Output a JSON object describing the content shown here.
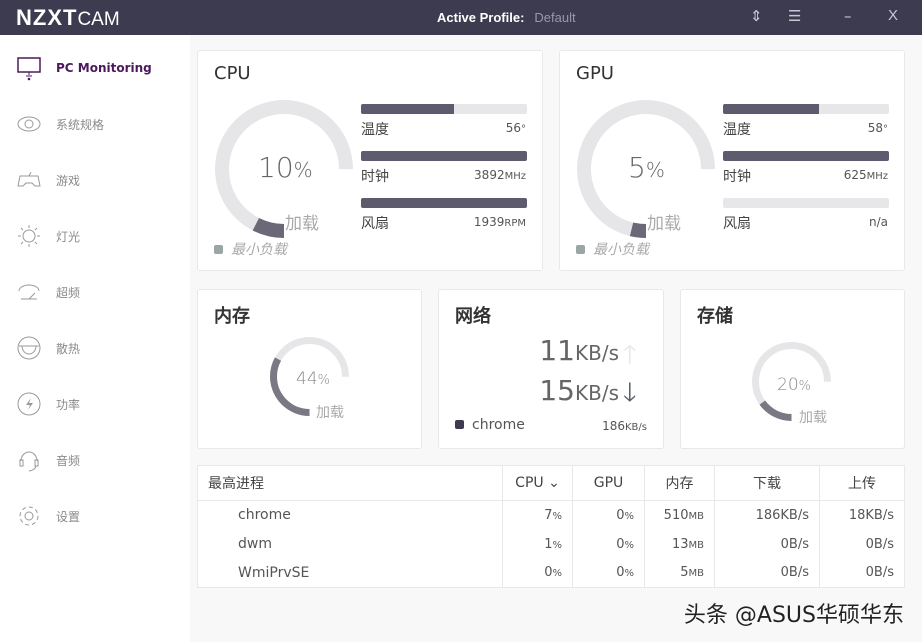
{
  "titlebar": {
    "brand": "NZXT",
    "product": "CAM",
    "profile_label": "Active Profile:",
    "profile_value": "Default",
    "icons": [
      "sort-arrows-icon",
      "menu-icon",
      "minimize-icon",
      "close-icon"
    ],
    "minimize": "–",
    "close": "X"
  },
  "sidebar": {
    "items": [
      {
        "label": "PC Monitoring",
        "icon": "monitor-icon",
        "active": true
      },
      {
        "label": "系统规格",
        "icon": "eye-icon"
      },
      {
        "label": "游戏",
        "icon": "gamepad-icon"
      },
      {
        "label": "灯光",
        "icon": "sun-icon"
      },
      {
        "label": "超频",
        "icon": "speedometer-icon"
      },
      {
        "label": "散热",
        "icon": "cooling-icon"
      },
      {
        "label": "功率",
        "icon": "lightning-icon"
      },
      {
        "label": "音频",
        "icon": "headset-icon"
      },
      {
        "label": "设置",
        "icon": "gear-icon"
      }
    ]
  },
  "cpu": {
    "title": "CPU",
    "load_pct": 10,
    "load_text": "10",
    "pct": "%",
    "load_label": "加载",
    "min_load": "最小负载",
    "temp": {
      "label": "温度",
      "value": "56",
      "unit": "°",
      "fill": 0.56
    },
    "clock": {
      "label": "时钟",
      "value": "3892",
      "unit": "MHz",
      "fill": 1.0
    },
    "fan": {
      "label": "风扇",
      "value": "1939",
      "unit": "RPM",
      "fill": 1.0
    }
  },
  "gpu": {
    "title": "GPU",
    "load_pct": 5,
    "load_text": "5",
    "pct": "%",
    "load_label": "加载",
    "min_load": "最小负载",
    "temp": {
      "label": "温度",
      "value": "58",
      "unit": "°",
      "fill": 0.58
    },
    "clock": {
      "label": "时钟",
      "value": "625",
      "unit": "MHz",
      "fill": 1.0
    },
    "fan": {
      "label": "风扇",
      "value": "n/a",
      "unit": "",
      "fill": 0
    }
  },
  "memory": {
    "title": "内存",
    "load_pct": 44,
    "load_text": "44",
    "pct": "%",
    "load_label": "加载"
  },
  "network": {
    "title": "网络",
    "up": "11",
    "down": "15",
    "unit": "KB/s",
    "top_process": "chrome",
    "top_value": "186",
    "top_unit": "KB/s"
  },
  "storage": {
    "title": "存储",
    "load_pct": 20,
    "load_text": "20",
    "pct": "%",
    "load_label": "加载"
  },
  "processes": {
    "headers": [
      "最高进程",
      "CPU",
      "GPU",
      "内存",
      "下载",
      "上传"
    ],
    "sort_column": "CPU",
    "rows": [
      {
        "name": "chrome",
        "cpu": "7",
        "gpu": "0",
        "mem": "510",
        "down": "186KB/s",
        "up": "18KB/s"
      },
      {
        "name": "dwm",
        "cpu": "1",
        "gpu": "0",
        "mem": "13",
        "down": "0B/s",
        "up": "0B/s"
      },
      {
        "name": "WmiPrvSE",
        "cpu": "0",
        "gpu": "0",
        "mem": "5",
        "down": "0B/s",
        "up": "0B/s"
      }
    ],
    "pct": "%",
    "mem_unit": "MB"
  },
  "watermark": "头条 @ASUS华硕华东",
  "colors": {
    "titlebar": "#3d3b4f",
    "accent": "#4c1a5c",
    "bar_fill": "#5f5b6e",
    "track": "#e7e7e9"
  }
}
